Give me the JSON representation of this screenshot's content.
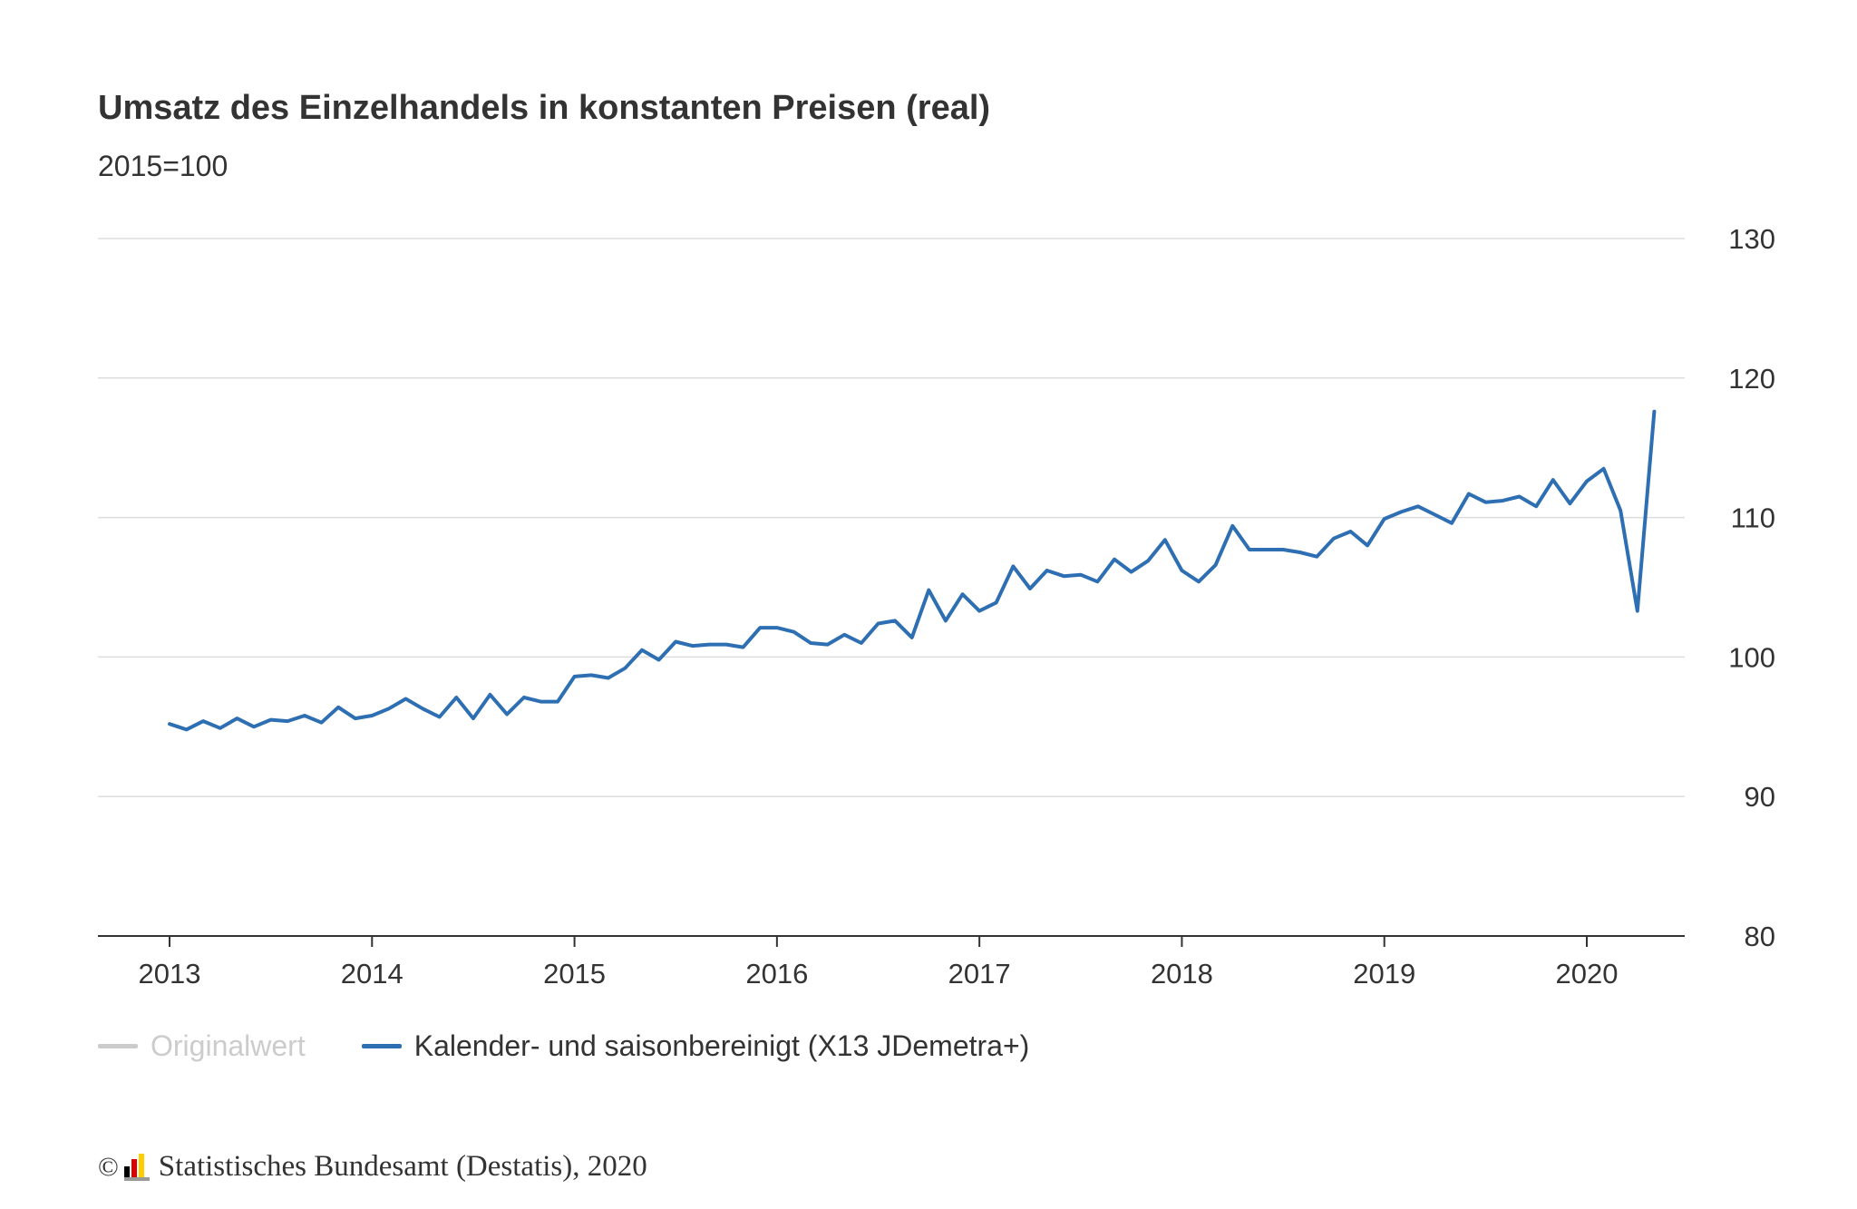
{
  "title": "Umsatz des Einzelhandels in konstanten Preisen (real)",
  "subtitle": "2015=100",
  "legend": {
    "original": "Originalwert",
    "adjusted": "Kalender- und saisonbereinigt (X13 JDemetra+)"
  },
  "footer": {
    "copyright": "©",
    "source": "Statistisches Bundesamt (Destatis), 2020"
  },
  "colors": {
    "series": "#2e6fb3",
    "inactive": "#cccccc",
    "grid": "#dddddd",
    "axis": "#333333",
    "logo_black": "#000000",
    "logo_red": "#dd0000",
    "logo_gold": "#ffce00",
    "logo_grey": "#999999"
  },
  "chart_data": {
    "type": "line",
    "y_axis_position": "right",
    "ylim": [
      80,
      130
    ],
    "yticks": [
      80,
      90,
      100,
      110,
      120,
      130
    ],
    "xlim": [
      2013,
      2020.5
    ],
    "xticks": [
      2013,
      2014,
      2015,
      2016,
      2017,
      2018,
      2019,
      2020
    ],
    "grid": true,
    "legend_position": "bottom-left",
    "series": [
      {
        "name": "Kalender- und saisonbereinigt (X13 JDemetra+)",
        "start": "2013-01",
        "frequency": "monthly",
        "values": [
          95.2,
          94.8,
          95.4,
          94.9,
          95.6,
          95.0,
          95.5,
          95.4,
          95.8,
          95.3,
          96.4,
          95.6,
          95.8,
          96.3,
          97.0,
          96.3,
          95.7,
          97.1,
          95.6,
          97.3,
          95.9,
          97.1,
          96.8,
          96.8,
          98.6,
          98.7,
          98.5,
          99.2,
          100.5,
          99.8,
          101.1,
          100.8,
          100.9,
          100.9,
          100.7,
          102.1,
          102.1,
          101.8,
          101.0,
          100.9,
          101.6,
          101.0,
          102.4,
          102.6,
          101.4,
          104.8,
          102.6,
          104.5,
          103.3,
          103.9,
          106.5,
          104.9,
          106.2,
          105.8,
          105.9,
          105.4,
          107.0,
          106.1,
          106.9,
          108.4,
          106.2,
          105.4,
          106.6,
          109.4,
          107.7,
          107.7,
          107.7,
          107.5,
          107.2,
          108.5,
          109.0,
          108.0,
          109.9,
          110.4,
          110.8,
          110.2,
          109.6,
          111.7,
          111.1,
          111.2,
          111.5,
          110.8,
          112.7,
          111.0,
          112.6,
          113.5,
          110.5,
          103.3,
          117.6
        ]
      }
    ]
  }
}
